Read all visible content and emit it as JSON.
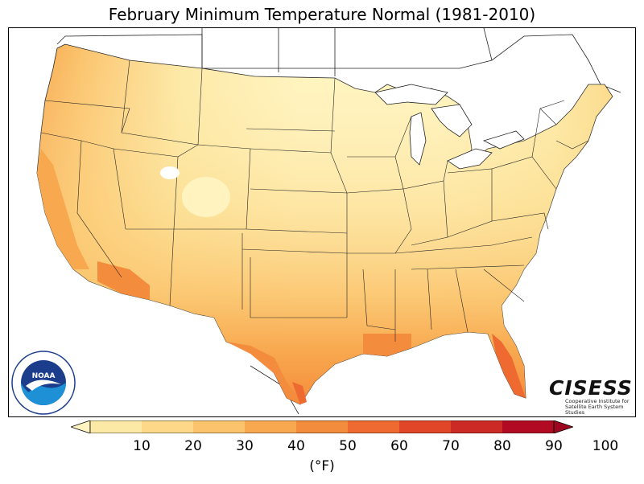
{
  "title": "February Minimum Temperature Normal (1981-2010)",
  "colorbar": {
    "unit_label": "(°F)",
    "ticks": [
      "10",
      "20",
      "30",
      "40",
      "50",
      "60",
      "70",
      "80",
      "90",
      "100"
    ],
    "bins": [
      {
        "range": "<10",
        "color": "#fff4c0"
      },
      {
        "range": "10-20",
        "color": "#fde9a6"
      },
      {
        "range": "20-30",
        "color": "#fcd888"
      },
      {
        "range": "30-40",
        "color": "#fbc36c"
      },
      {
        "range": "40-50",
        "color": "#f8a94f"
      },
      {
        "range": "50-60",
        "color": "#f48c3d"
      },
      {
        "range": "60-70",
        "color": "#ee6a30"
      },
      {
        "range": "70-80",
        "color": "#e24628"
      },
      {
        "range": "80-90",
        "color": "#cc2a24"
      },
      {
        "range": "90-100",
        "color": "#b10a22"
      },
      {
        "range": ">100",
        "color": "#9e0720"
      }
    ]
  },
  "logos": {
    "noaa_text": "NOAA",
    "cisess_name": "CISESS",
    "cisess_line1": "Cooperative Institute for",
    "cisess_line2": "Satellite Earth System Studies"
  }
}
